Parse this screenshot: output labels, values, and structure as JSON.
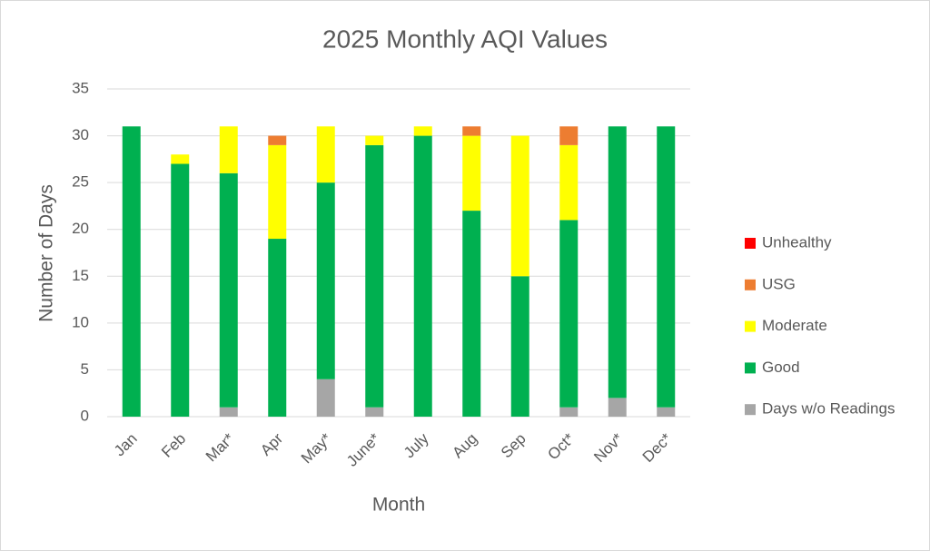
{
  "chart_data": {
    "type": "stacked_bar",
    "title": "2025 Monthly AQI Values",
    "x_label": "Month",
    "y_label": "Number of Days",
    "categories": [
      "Jan",
      "Feb",
      "Mar*",
      "Apr",
      "May*",
      "June*",
      "July",
      "Aug",
      "Sep",
      "Oct*",
      "Nov*",
      "Dec*"
    ],
    "series": [
      {
        "name": "Days w/o Readings",
        "color": "#a6a6a6",
        "values": [
          0,
          0,
          1,
          0,
          4,
          1,
          0,
          0,
          0,
          1,
          2,
          1
        ]
      },
      {
        "name": "Good",
        "color": "#00b050",
        "values": [
          31,
          27,
          25,
          19,
          21,
          28,
          30,
          22,
          15,
          20,
          29,
          30
        ]
      },
      {
        "name": "Moderate",
        "color": "#ffff00",
        "values": [
          0,
          1,
          5,
          10,
          6,
          1,
          1,
          8,
          15,
          8,
          0,
          0
        ]
      },
      {
        "name": "USG",
        "color": "#ed7d31",
        "values": [
          0,
          0,
          0,
          1,
          0,
          0,
          0,
          1,
          0,
          2,
          0,
          0
        ]
      },
      {
        "name": "Unhealthy",
        "color": "#ff0000",
        "values": [
          0,
          0,
          0,
          0,
          0,
          0,
          0,
          0,
          0,
          0,
          0,
          0
        ]
      }
    ],
    "ylim": [
      0,
      35
    ],
    "yticks": [
      0,
      5,
      10,
      15,
      20,
      25,
      30,
      35
    ],
    "grid": true,
    "legend": "right"
  }
}
